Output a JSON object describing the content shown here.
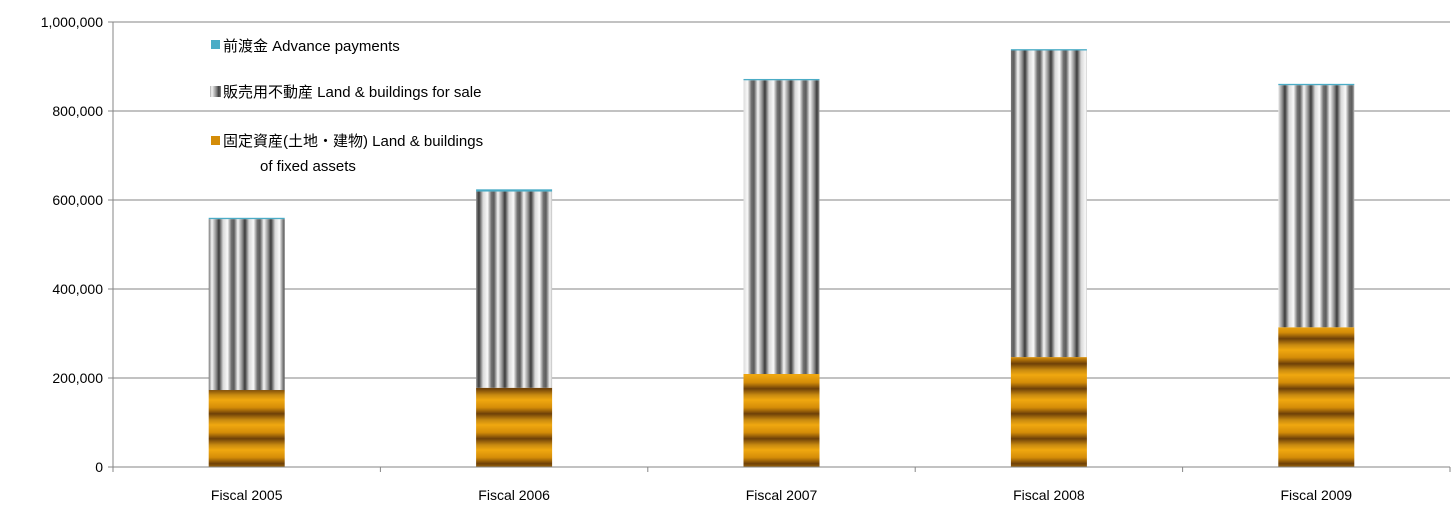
{
  "chart_data": {
    "type": "bar",
    "stacked": true,
    "categories": [
      "Fiscal 2005",
      "Fiscal 2006",
      "Fiscal 2007",
      "Fiscal 2008",
      "Fiscal 2009"
    ],
    "series": [
      {
        "name": "固定資産(土地・建物) Land & buildings of fixed assets",
        "color": "#d4900a",
        "values": [
          173000,
          178000,
          209000,
          247000,
          314000
        ]
      },
      {
        "name": "販売用不動産 Land & buildings for sale",
        "color": "#a0a0a0",
        "values": [
          384000,
          441000,
          660000,
          689000,
          544000
        ]
      },
      {
        "name": "前渡金 Advance payments",
        "color": "#4bacc6",
        "values": [
          3000,
          5000,
          3000,
          3000,
          3000
        ]
      }
    ],
    "ylim": [
      0,
      1000000
    ],
    "yticks": [
      "0",
      "200,000",
      "400,000",
      "600,000",
      "800,000",
      "1,000,000"
    ],
    "grid": "horizontal",
    "legend_position": "top-left",
    "legend": {
      "advance": "前渡金 Advance payments",
      "sale": "販売用不動産 Land & buildings for sale",
      "fixed_line1": "固定資産(土地・建物) Land & buildings",
      "fixed_line2": "of fixed assets"
    }
  }
}
